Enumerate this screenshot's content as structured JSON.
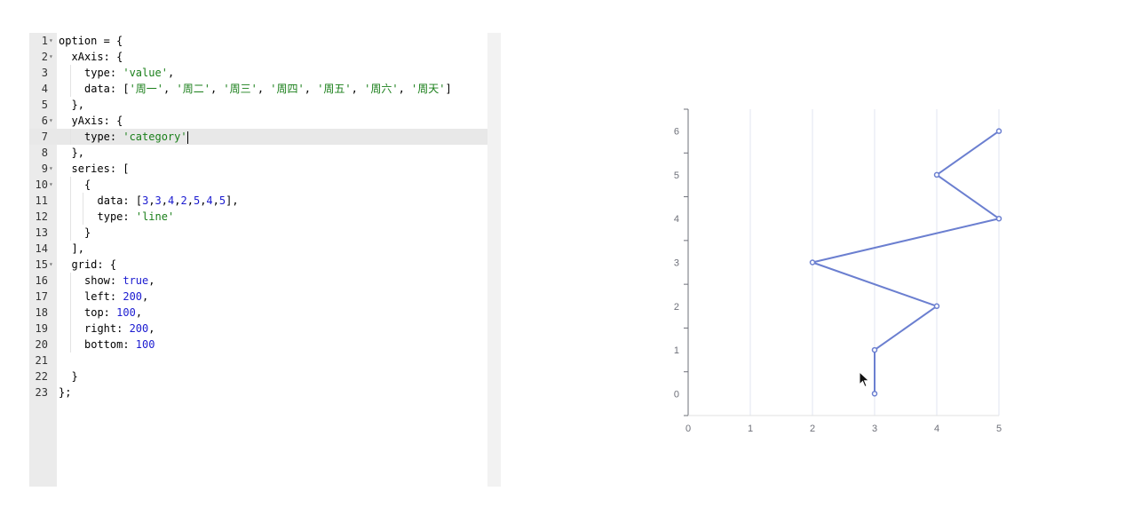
{
  "editor": {
    "lines": [
      {
        "n": "1",
        "fold": true,
        "active": false,
        "indent": 0,
        "tokens": [
          {
            "t": "option = {",
            "c": ""
          }
        ]
      },
      {
        "n": "2",
        "fold": true,
        "active": false,
        "indent": 1,
        "tokens": [
          {
            "t": "xAxis: {",
            "c": ""
          }
        ]
      },
      {
        "n": "3",
        "fold": false,
        "active": false,
        "indent": 2,
        "tokens": [
          {
            "t": "type: ",
            "c": ""
          },
          {
            "t": "'value'",
            "c": "str"
          },
          {
            "t": ",",
            "c": ""
          }
        ]
      },
      {
        "n": "4",
        "fold": false,
        "active": false,
        "indent": 2,
        "tokens": [
          {
            "t": "data: [",
            "c": ""
          },
          {
            "t": "'周一'",
            "c": "str"
          },
          {
            "t": ", ",
            "c": ""
          },
          {
            "t": "'周二'",
            "c": "str"
          },
          {
            "t": ", ",
            "c": ""
          },
          {
            "t": "'周三'",
            "c": "str"
          },
          {
            "t": ", ",
            "c": ""
          },
          {
            "t": "'周四'",
            "c": "str"
          },
          {
            "t": ", ",
            "c": ""
          },
          {
            "t": "'周五'",
            "c": "str"
          },
          {
            "t": ", ",
            "c": ""
          },
          {
            "t": "'周六'",
            "c": "str"
          },
          {
            "t": ", ",
            "c": ""
          },
          {
            "t": "'周天'",
            "c": "str"
          },
          {
            "t": "]",
            "c": ""
          }
        ]
      },
      {
        "n": "5",
        "fold": false,
        "active": false,
        "indent": 1,
        "tokens": [
          {
            "t": "},",
            "c": ""
          }
        ]
      },
      {
        "n": "6",
        "fold": true,
        "active": false,
        "indent": 1,
        "tokens": [
          {
            "t": "yAxis: {",
            "c": ""
          }
        ]
      },
      {
        "n": "7",
        "fold": false,
        "active": true,
        "indent": 2,
        "tokens": [
          {
            "t": "type: ",
            "c": ""
          },
          {
            "t": "'category'",
            "c": "str"
          }
        ],
        "cursor": true
      },
      {
        "n": "8",
        "fold": false,
        "active": false,
        "indent": 1,
        "tokens": [
          {
            "t": "},",
            "c": ""
          }
        ]
      },
      {
        "n": "9",
        "fold": true,
        "active": false,
        "indent": 1,
        "tokens": [
          {
            "t": "series: [",
            "c": ""
          }
        ]
      },
      {
        "n": "10",
        "fold": true,
        "active": false,
        "indent": 2,
        "tokens": [
          {
            "t": "{",
            "c": ""
          }
        ]
      },
      {
        "n": "11",
        "fold": false,
        "active": false,
        "indent": 3,
        "tokens": [
          {
            "t": "data: [",
            "c": ""
          },
          {
            "t": "3",
            "c": "num"
          },
          {
            "t": ",",
            "c": ""
          },
          {
            "t": "3",
            "c": "num"
          },
          {
            "t": ",",
            "c": ""
          },
          {
            "t": "4",
            "c": "num"
          },
          {
            "t": ",",
            "c": ""
          },
          {
            "t": "2",
            "c": "num"
          },
          {
            "t": ",",
            "c": ""
          },
          {
            "t": "5",
            "c": "num"
          },
          {
            "t": ",",
            "c": ""
          },
          {
            "t": "4",
            "c": "num"
          },
          {
            "t": ",",
            "c": ""
          },
          {
            "t": "5",
            "c": "num"
          },
          {
            "t": "],",
            "c": ""
          }
        ]
      },
      {
        "n": "12",
        "fold": false,
        "active": false,
        "indent": 3,
        "tokens": [
          {
            "t": "type: ",
            "c": ""
          },
          {
            "t": "'line'",
            "c": "str"
          }
        ]
      },
      {
        "n": "13",
        "fold": false,
        "active": false,
        "indent": 2,
        "tokens": [
          {
            "t": "}",
            "c": ""
          }
        ]
      },
      {
        "n": "14",
        "fold": false,
        "active": false,
        "indent": 1,
        "tokens": [
          {
            "t": "],",
            "c": ""
          }
        ]
      },
      {
        "n": "15",
        "fold": true,
        "active": false,
        "indent": 1,
        "tokens": [
          {
            "t": "grid: {",
            "c": ""
          }
        ]
      },
      {
        "n": "16",
        "fold": false,
        "active": false,
        "indent": 2,
        "tokens": [
          {
            "t": "show: ",
            "c": ""
          },
          {
            "t": "true",
            "c": "kw"
          },
          {
            "t": ",",
            "c": ""
          }
        ]
      },
      {
        "n": "17",
        "fold": false,
        "active": false,
        "indent": 2,
        "tokens": [
          {
            "t": "left: ",
            "c": ""
          },
          {
            "t": "200",
            "c": "num"
          },
          {
            "t": ",",
            "c": ""
          }
        ]
      },
      {
        "n": "18",
        "fold": false,
        "active": false,
        "indent": 2,
        "tokens": [
          {
            "t": "top: ",
            "c": ""
          },
          {
            "t": "100",
            "c": "num"
          },
          {
            "t": ",",
            "c": ""
          }
        ]
      },
      {
        "n": "19",
        "fold": false,
        "active": false,
        "indent": 2,
        "tokens": [
          {
            "t": "right: ",
            "c": ""
          },
          {
            "t": "200",
            "c": "num"
          },
          {
            "t": ",",
            "c": ""
          }
        ]
      },
      {
        "n": "20",
        "fold": false,
        "active": false,
        "indent": 2,
        "tokens": [
          {
            "t": "bottom: ",
            "c": ""
          },
          {
            "t": "100",
            "c": "num"
          }
        ]
      },
      {
        "n": "21",
        "fold": false,
        "active": false,
        "indent": 0,
        "tokens": []
      },
      {
        "n": "22",
        "fold": false,
        "active": false,
        "indent": 1,
        "tokens": [
          {
            "t": "}",
            "c": ""
          }
        ]
      },
      {
        "n": "23",
        "fold": false,
        "active": false,
        "indent": 0,
        "tokens": [
          {
            "t": "};",
            "c": ""
          }
        ]
      }
    ]
  },
  "colors": {
    "line": "#6b7fd0",
    "axis": "#6e7079",
    "split": "#e0e6f1",
    "label": "#6e7079"
  },
  "chart_data": {
    "type": "line",
    "x_ticks": [
      "0",
      "1",
      "2",
      "3",
      "4",
      "5"
    ],
    "y_categories": [
      "0",
      "1",
      "2",
      "3",
      "4",
      "5",
      "6"
    ],
    "xlim": [
      0,
      5
    ],
    "points": [
      {
        "x": 3,
        "y": 0
      },
      {
        "x": 3,
        "y": 1
      },
      {
        "x": 4,
        "y": 2
      },
      {
        "x": 2,
        "y": 3
      },
      {
        "x": 5,
        "y": 4
      },
      {
        "x": 4,
        "y": 5
      },
      {
        "x": 5,
        "y": 6
      }
    ],
    "grid": true
  }
}
